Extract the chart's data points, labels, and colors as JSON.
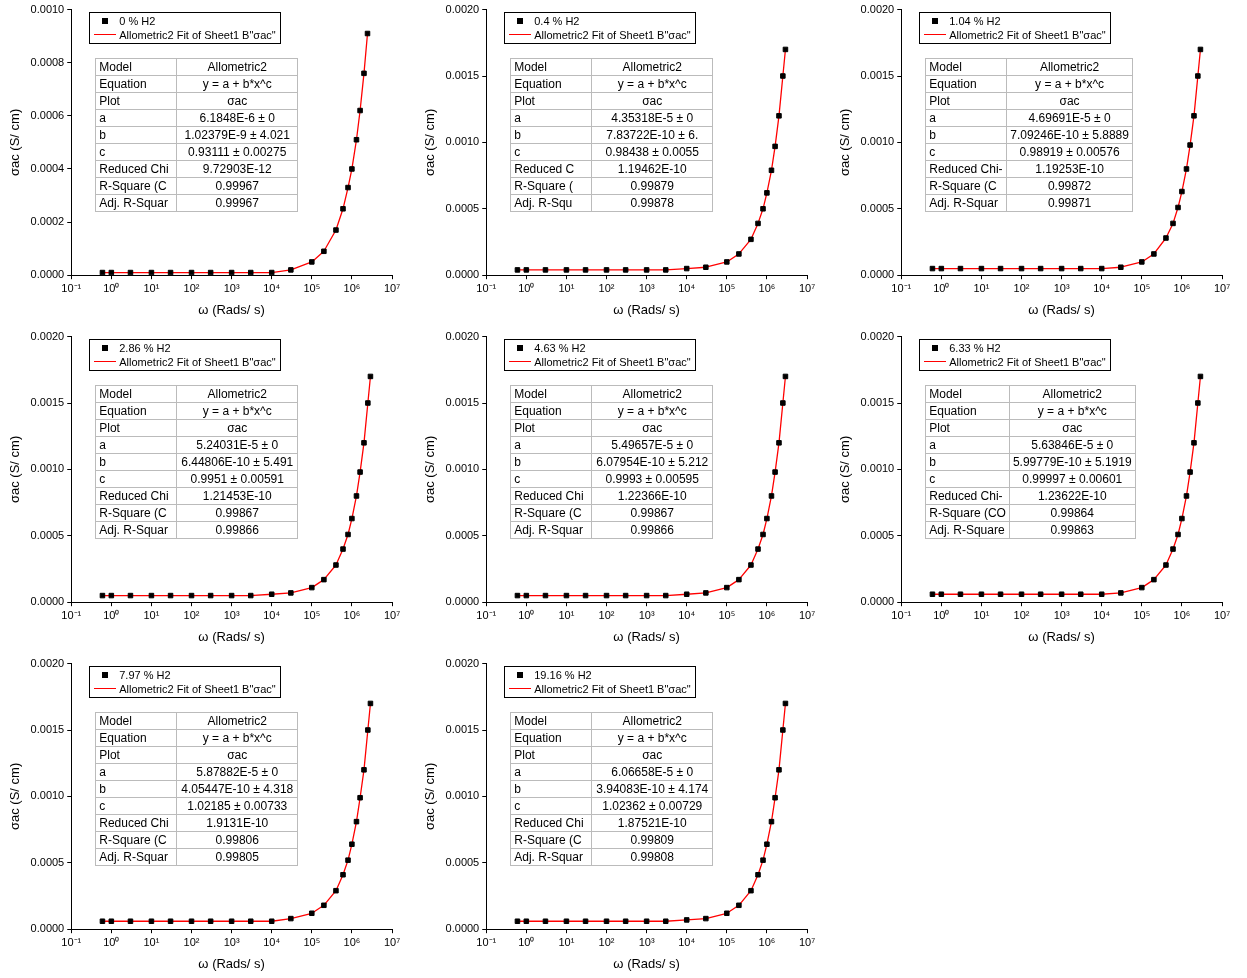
{
  "chart_data": [
    {
      "type": "scatter",
      "xlabel": "ω (Rads/ s)",
      "ylabel": "σac (S/ cm)",
      "log": "x",
      "legend": "top left",
      "xlim": [
        0.1,
        10000000
      ],
      "xticks": [
        {
          "value": 0.1,
          "label": "10⁻¹"
        },
        {
          "value": 1,
          "label": "10⁰"
        },
        {
          "value": 10,
          "label": "10¹"
        },
        {
          "value": 100,
          "label": "10²"
        },
        {
          "value": 1000,
          "label": "10³"
        },
        {
          "value": 10000,
          "label": "10⁴"
        },
        {
          "value": 100000,
          "label": "10⁵"
        },
        {
          "value": 1000000,
          "label": "10⁶"
        },
        {
          "value": 10000000,
          "label": "10⁷"
        }
      ],
      "ylim": [
        0,
        0.001
      ],
      "yticks": [
        {
          "value": 0,
          "label": "0.0000"
        },
        {
          "value": 0.0002,
          "label": "0.0002"
        },
        {
          "value": 0.0004,
          "label": "0.0004"
        },
        {
          "value": 0.0006,
          "label": "0.0006"
        },
        {
          "value": 0.0008,
          "label": "0.0008"
        },
        {
          "value": 0.001,
          "label": "0.0010"
        }
      ],
      "x": [
        0.6,
        1,
        3,
        10,
        30,
        100,
        300,
        1000,
        3000,
        10000,
        30000,
        100000,
        200000,
        400000,
        600000,
        800000,
        1000000,
        1300000,
        1600000,
        2000000,
        2450000
      ],
      "series": [
        {
          "name": "0 % H2",
          "color": "#000000",
          "marker": "square",
          "values": [
            1e-05,
            1e-05,
            1e-05,
            1e-05,
            1e-05,
            1e-05,
            1e-05,
            1e-05,
            1e-05,
            1e-05,
            2e-05,
            5e-05,
            9e-05,
            0.00017,
            0.00025,
            0.00033,
            0.0004,
            0.00051,
            0.00062,
            0.00076,
            0.00091
          ]
        },
        {
          "name": "Allometric2 Fit of Sheet1 B\"σac\"",
          "type": "line",
          "color": "#ff0000",
          "marker": "none",
          "values": [
            1e-05,
            1e-05,
            1e-05,
            1e-05,
            1e-05,
            1e-05,
            1e-05,
            1e-05,
            1e-05,
            1e-05,
            2e-05,
            5e-05,
            9e-05,
            0.00017,
            0.00025,
            0.00033,
            0.0004,
            0.00051,
            0.00062,
            0.00076,
            0.00091
          ]
        }
      ],
      "annotations": [
        "Model",
        "Allometric2",
        "Equation",
        "y = a + b*x^c",
        "Plot",
        "σac",
        "a",
        "6.1848E-6 ± 0",
        "b",
        "1.02379E-9 ± 4.021",
        "c",
        "0.93111 ± 0.00275",
        "Reduced Chi",
        "9.72903E-12",
        "R-Square (C",
        "0.99967",
        "Adj. R-Squar",
        "0.99967"
      ]
    },
    {
      "type": "scatter",
      "xlabel": "ω (Rads/ s)",
      "ylabel": "σac (S/ cm)",
      "log": "x",
      "legend": "top left",
      "xlim": [
        0.1,
        10000000
      ],
      "xticks": [
        {
          "value": 0.1,
          "label": "10⁻¹"
        },
        {
          "value": 1,
          "label": "10⁰"
        },
        {
          "value": 10,
          "label": "10¹"
        },
        {
          "value": 100,
          "label": "10²"
        },
        {
          "value": 1000,
          "label": "10³"
        },
        {
          "value": 10000,
          "label": "10⁴"
        },
        {
          "value": 100000,
          "label": "10⁵"
        },
        {
          "value": 1000000,
          "label": "10⁶"
        },
        {
          "value": 10000000,
          "label": "10⁷"
        }
      ],
      "ylim": [
        0,
        0.002
      ],
      "yticks": [
        {
          "value": 0,
          "label": "0.0000"
        },
        {
          "value": 0.0005,
          "label": "0.0005"
        },
        {
          "value": 0.001,
          "label": "0.0010"
        },
        {
          "value": 0.0015,
          "label": "0.0015"
        },
        {
          "value": 0.002,
          "label": "0.0020"
        }
      ],
      "x": [
        0.6,
        1,
        3,
        10,
        30,
        100,
        300,
        1000,
        3000,
        10000,
        30000,
        100000,
        200000,
        400000,
        600000,
        800000,
        1000000,
        1300000,
        1600000,
        2000000,
        2500000,
        2900000
      ],
      "series": [
        {
          "name": "0.4 % H2",
          "color": "#000000",
          "marker": "square",
          "values": [
            4e-05,
            4e-05,
            4e-05,
            4e-05,
            4e-05,
            4e-05,
            4e-05,
            4e-05,
            4e-05,
            5e-05,
            6e-05,
            0.0001,
            0.00016,
            0.00027,
            0.00039,
            0.0005,
            0.00062,
            0.00079,
            0.00097,
            0.0012,
            0.0015,
            0.0017
          ]
        },
        {
          "name": "Allometric2 Fit of Sheet1 B\"σac\"",
          "type": "line",
          "color": "#ff0000",
          "marker": "none",
          "values": [
            4e-05,
            4e-05,
            4e-05,
            4e-05,
            4e-05,
            4e-05,
            4e-05,
            4e-05,
            4e-05,
            5e-05,
            6e-05,
            0.0001,
            0.00016,
            0.00027,
            0.00039,
            0.0005,
            0.00062,
            0.00079,
            0.00097,
            0.0012,
            0.0015,
            0.0017
          ]
        }
      ],
      "annotations": [
        "Model",
        "Allometric2",
        "Equation",
        "y = a + b*x^c",
        "Plot",
        "σac",
        "a",
        "4.35318E-5 ± 0",
        "b",
        "7.83722E-10 ± 6.",
        "c",
        "0.98438 ± 0.0055",
        "Reduced C",
        "1.19462E-10",
        "R-Square (",
        "0.99879",
        "Adj. R-Squ",
        "0.99878"
      ]
    },
    {
      "type": "scatter",
      "xlabel": "ω (Rads/ s)",
      "ylabel": "σac (S/ cm)",
      "log": "x",
      "legend": "top left",
      "xlim": [
        0.1,
        10000000
      ],
      "xticks": [
        {
          "value": 0.1,
          "label": "10⁻¹"
        },
        {
          "value": 1,
          "label": "10⁰"
        },
        {
          "value": 10,
          "label": "10¹"
        },
        {
          "value": 100,
          "label": "10²"
        },
        {
          "value": 1000,
          "label": "10³"
        },
        {
          "value": 10000,
          "label": "10⁴"
        },
        {
          "value": 100000,
          "label": "10⁵"
        },
        {
          "value": 1000000,
          "label": "10⁶"
        },
        {
          "value": 10000000,
          "label": "10⁷"
        }
      ],
      "ylim": [
        0,
        0.002
      ],
      "yticks": [
        {
          "value": 0,
          "label": "0.0000"
        },
        {
          "value": 0.0005,
          "label": "0.0005"
        },
        {
          "value": 0.001,
          "label": "0.0010"
        },
        {
          "value": 0.0015,
          "label": "0.0015"
        },
        {
          "value": 0.002,
          "label": "0.0020"
        }
      ],
      "x": [
        0.6,
        1,
        3,
        10,
        30,
        100,
        300,
        1000,
        3000,
        10000,
        30000,
        100000,
        200000,
        400000,
        600000,
        800000,
        1000000,
        1300000,
        1600000,
        2000000,
        2500000,
        2900000
      ],
      "series": [
        {
          "name": "1.04 % H2",
          "color": "#000000",
          "marker": "square",
          "values": [
            5e-05,
            5e-05,
            5e-05,
            5e-05,
            5e-05,
            5e-05,
            5e-05,
            5e-05,
            5e-05,
            5e-05,
            6e-05,
            0.0001,
            0.00016,
            0.00028,
            0.00039,
            0.00051,
            0.00063,
            0.0008,
            0.00098,
            0.0012,
            0.0015,
            0.0017
          ]
        },
        {
          "name": "Allometric2 Fit of Sheet1 B\"σac\"",
          "type": "line",
          "color": "#ff0000",
          "marker": "none",
          "values": [
            5e-05,
            5e-05,
            5e-05,
            5e-05,
            5e-05,
            5e-05,
            5e-05,
            5e-05,
            5e-05,
            5e-05,
            6e-05,
            0.0001,
            0.00016,
            0.00028,
            0.00039,
            0.00051,
            0.00063,
            0.0008,
            0.00098,
            0.0012,
            0.0015,
            0.0017
          ]
        }
      ],
      "annotations": [
        "Model",
        "Allometric2",
        "Equation",
        "y = a + b*x^c",
        "Plot",
        "σac",
        "a",
        "4.69691E-5 ± 0",
        "b",
        "7.09246E-10 ± 5.8889",
        "c",
        "0.98919 ± 0.00576",
        "Reduced Chi-",
        "1.19253E-10",
        "R-Square (C",
        "0.99872",
        "Adj. R-Squar",
        "0.99871"
      ]
    },
    {
      "type": "scatter",
      "xlabel": "ω (Rads/ s)",
      "ylabel": "σac (S/ cm)",
      "log": "x",
      "legend": "top left",
      "xlim": [
        0.1,
        10000000
      ],
      "xticks": [
        {
          "value": 0.1,
          "label": "10⁻¹"
        },
        {
          "value": 1,
          "label": "10⁰"
        },
        {
          "value": 10,
          "label": "10¹"
        },
        {
          "value": 100,
          "label": "10²"
        },
        {
          "value": 1000,
          "label": "10³"
        },
        {
          "value": 10000,
          "label": "10⁴"
        },
        {
          "value": 100000,
          "label": "10⁵"
        },
        {
          "value": 1000000,
          "label": "10⁶"
        },
        {
          "value": 10000000,
          "label": "10⁷"
        }
      ],
      "ylim": [
        0,
        0.002
      ],
      "yticks": [
        {
          "value": 0,
          "label": "0.0000"
        },
        {
          "value": 0.0005,
          "label": "0.0005"
        },
        {
          "value": 0.001,
          "label": "0.0010"
        },
        {
          "value": 0.0015,
          "label": "0.0015"
        },
        {
          "value": 0.002,
          "label": "0.0020"
        }
      ],
      "x": [
        0.6,
        1,
        3,
        10,
        30,
        100,
        300,
        1000,
        3000,
        10000,
        30000,
        100000,
        200000,
        400000,
        600000,
        800000,
        1000000,
        1300000,
        1600000,
        2000000,
        2500000,
        2900000
      ],
      "series": [
        {
          "name": "2.86 % H2",
          "color": "#000000",
          "marker": "square",
          "values": [
            5e-05,
            5e-05,
            5e-05,
            5e-05,
            5e-05,
            5e-05,
            5e-05,
            5e-05,
            5e-05,
            6e-05,
            7e-05,
            0.00011,
            0.00017,
            0.00028,
            0.0004,
            0.00051,
            0.00063,
            0.0008,
            0.00098,
            0.0012,
            0.0015,
            0.0017
          ]
        },
        {
          "name": "Allometric2 Fit of Sheet1 B\"σac\"",
          "type": "line",
          "color": "#ff0000",
          "marker": "none",
          "values": [
            5e-05,
            5e-05,
            5e-05,
            5e-05,
            5e-05,
            5e-05,
            5e-05,
            5e-05,
            5e-05,
            6e-05,
            7e-05,
            0.00011,
            0.00017,
            0.00028,
            0.0004,
            0.00051,
            0.00063,
            0.0008,
            0.00098,
            0.0012,
            0.0015,
            0.0017
          ]
        }
      ],
      "annotations": [
        "Model",
        "Allometric2",
        "Equation",
        "y = a + b*x^c",
        "Plot",
        "σac",
        "a",
        "5.24031E-5 ± 0",
        "b",
        "6.44806E-10 ± 5.491",
        "c",
        "0.9951 ± 0.00591",
        "Reduced Chi",
        "1.21453E-10",
        "R-Square (C",
        "0.99867",
        "Adj. R-Squar",
        "0.99866"
      ]
    },
    {
      "type": "scatter",
      "xlabel": "ω (Rads/ s)",
      "ylabel": "σac (S/ cm)",
      "log": "x",
      "legend": "top left",
      "xlim": [
        0.1,
        10000000
      ],
      "xticks": [
        {
          "value": 0.1,
          "label": "10⁻¹"
        },
        {
          "value": 1,
          "label": "10⁰"
        },
        {
          "value": 10,
          "label": "10¹"
        },
        {
          "value": 100,
          "label": "10²"
        },
        {
          "value": 1000,
          "label": "10³"
        },
        {
          "value": 10000,
          "label": "10⁴"
        },
        {
          "value": 100000,
          "label": "10⁵"
        },
        {
          "value": 1000000,
          "label": "10⁶"
        },
        {
          "value": 10000000,
          "label": "10⁷"
        }
      ],
      "ylim": [
        0,
        0.002
      ],
      "yticks": [
        {
          "value": 0,
          "label": "0.0000"
        },
        {
          "value": 0.0005,
          "label": "0.0005"
        },
        {
          "value": 0.001,
          "label": "0.0010"
        },
        {
          "value": 0.0015,
          "label": "0.0015"
        },
        {
          "value": 0.002,
          "label": "0.0020"
        }
      ],
      "x": [
        0.6,
        1,
        3,
        10,
        30,
        100,
        300,
        1000,
        3000,
        10000,
        30000,
        100000,
        200000,
        400000,
        600000,
        800000,
        1000000,
        1300000,
        1600000,
        2000000,
        2500000,
        2900000
      ],
      "series": [
        {
          "name": "4.63 % H2",
          "color": "#000000",
          "marker": "square",
          "values": [
            5e-05,
            5e-05,
            5e-05,
            5e-05,
            5e-05,
            5e-05,
            5e-05,
            5e-05,
            5e-05,
            6e-05,
            7e-05,
            0.00011,
            0.00017,
            0.00028,
            0.0004,
            0.00051,
            0.00063,
            0.0008,
            0.00098,
            0.0012,
            0.0015,
            0.0017
          ]
        },
        {
          "name": "Allometric2 Fit of Sheet1 B\"σac\"",
          "type": "line",
          "color": "#ff0000",
          "marker": "none",
          "values": [
            5e-05,
            5e-05,
            5e-05,
            5e-05,
            5e-05,
            5e-05,
            5e-05,
            5e-05,
            5e-05,
            6e-05,
            7e-05,
            0.00011,
            0.00017,
            0.00028,
            0.0004,
            0.00051,
            0.00063,
            0.0008,
            0.00098,
            0.0012,
            0.0015,
            0.0017
          ]
        }
      ],
      "annotations": [
        "Model",
        "Allometric2",
        "Equation",
        "y = a + b*x^c",
        "Plot",
        "σac",
        "a",
        "5.49657E-5 ± 0",
        "b",
        "6.07954E-10 ± 5.212",
        "c",
        "0.9993 ± 0.00595",
        "Reduced Chi",
        "1.22366E-10",
        "R-Square (C",
        "0.99867",
        "Adj. R-Squar",
        "0.99866"
      ]
    },
    {
      "type": "scatter",
      "xlabel": "ω (Rads/ s)",
      "ylabel": "σac (S/ cm)",
      "log": "x",
      "legend": "top left",
      "xlim": [
        0.1,
        10000000
      ],
      "xticks": [
        {
          "value": 0.1,
          "label": "10⁻¹"
        },
        {
          "value": 1,
          "label": "10⁰"
        },
        {
          "value": 10,
          "label": "10¹"
        },
        {
          "value": 100,
          "label": "10²"
        },
        {
          "value": 1000,
          "label": "10³"
        },
        {
          "value": 10000,
          "label": "10⁴"
        },
        {
          "value": 100000,
          "label": "10⁵"
        },
        {
          "value": 1000000,
          "label": "10⁶"
        },
        {
          "value": 10000000,
          "label": "10⁷"
        }
      ],
      "ylim": [
        0,
        0.002
      ],
      "yticks": [
        {
          "value": 0,
          "label": "0.0000"
        },
        {
          "value": 0.0005,
          "label": "0.0005"
        },
        {
          "value": 0.001,
          "label": "0.0010"
        },
        {
          "value": 0.0015,
          "label": "0.0015"
        },
        {
          "value": 0.002,
          "label": "0.0020"
        }
      ],
      "x": [
        0.6,
        1,
        3,
        10,
        30,
        100,
        300,
        1000,
        3000,
        10000,
        30000,
        100000,
        200000,
        400000,
        600000,
        800000,
        1000000,
        1300000,
        1600000,
        2000000,
        2500000,
        2900000
      ],
      "series": [
        {
          "name": "6.33 % H2",
          "color": "#000000",
          "marker": "square",
          "values": [
            6e-05,
            6e-05,
            6e-05,
            6e-05,
            6e-05,
            6e-05,
            6e-05,
            6e-05,
            6e-05,
            6e-05,
            7e-05,
            0.00011,
            0.00017,
            0.00028,
            0.0004,
            0.00051,
            0.00063,
            0.0008,
            0.00098,
            0.0012,
            0.0015,
            0.0017
          ]
        },
        {
          "name": "Allometric2 Fit of Sheet1 B\"σac\"",
          "type": "line",
          "color": "#ff0000",
          "marker": "none",
          "values": [
            6e-05,
            6e-05,
            6e-05,
            6e-05,
            6e-05,
            6e-05,
            6e-05,
            6e-05,
            6e-05,
            6e-05,
            7e-05,
            0.00011,
            0.00017,
            0.00028,
            0.0004,
            0.00051,
            0.00063,
            0.0008,
            0.00098,
            0.0012,
            0.0015,
            0.0017
          ]
        }
      ],
      "annotations": [
        "Model",
        "Allometric2",
        "Equation",
        "y = a + b*x^c",
        "Plot",
        "σac",
        "a",
        "5.63846E-5 ± 0",
        "b",
        "5.99779E-10 ± 5.1919",
        "c",
        "0.99997 ± 0.00601",
        "Reduced Chi-",
        "1.23622E-10",
        "R-Square (CO",
        "0.99864",
        "Adj. R-Square",
        "0.99863"
      ]
    },
    {
      "type": "scatter",
      "xlabel": "ω (Rads/ s)",
      "ylabel": "σac (S/ cm)",
      "log": "x",
      "legend": "top left",
      "xlim": [
        0.1,
        10000000
      ],
      "xticks": [
        {
          "value": 0.1,
          "label": "10⁻¹"
        },
        {
          "value": 1,
          "label": "10⁰"
        },
        {
          "value": 10,
          "label": "10¹"
        },
        {
          "value": 100,
          "label": "10²"
        },
        {
          "value": 1000,
          "label": "10³"
        },
        {
          "value": 10000,
          "label": "10⁴"
        },
        {
          "value": 100000,
          "label": "10⁵"
        },
        {
          "value": 1000000,
          "label": "10⁶"
        },
        {
          "value": 10000000,
          "label": "10⁷"
        }
      ],
      "ylim": [
        0,
        0.002
      ],
      "yticks": [
        {
          "value": 0,
          "label": "0.0000"
        },
        {
          "value": 0.0005,
          "label": "0.0005"
        },
        {
          "value": 0.001,
          "label": "0.0010"
        },
        {
          "value": 0.0015,
          "label": "0.0015"
        },
        {
          "value": 0.002,
          "label": "0.0020"
        }
      ],
      "x": [
        0.6,
        1,
        3,
        10,
        30,
        100,
        300,
        1000,
        3000,
        10000,
        30000,
        100000,
        200000,
        400000,
        600000,
        800000,
        1000000,
        1300000,
        1600000,
        2000000,
        2500000,
        2900000
      ],
      "series": [
        {
          "name": "7.97 % H2",
          "color": "#000000",
          "marker": "square",
          "values": [
            6e-05,
            6e-05,
            6e-05,
            6e-05,
            6e-05,
            6e-05,
            6e-05,
            6e-05,
            6e-05,
            6e-05,
            8e-05,
            0.00012,
            0.00018,
            0.00029,
            0.00041,
            0.00052,
            0.00064,
            0.00081,
            0.00099,
            0.0012,
            0.0015,
            0.0017
          ]
        },
        {
          "name": "Allometric2 Fit of Sheet1 B\"σac\"",
          "type": "line",
          "color": "#ff0000",
          "marker": "none",
          "values": [
            6e-05,
            6e-05,
            6e-05,
            6e-05,
            6e-05,
            6e-05,
            6e-05,
            6e-05,
            6e-05,
            6e-05,
            8e-05,
            0.00012,
            0.00018,
            0.00029,
            0.00041,
            0.00052,
            0.00064,
            0.00081,
            0.00099,
            0.0012,
            0.0015,
            0.0017
          ]
        }
      ],
      "annotations": [
        "Model",
        "Allometric2",
        "Equation",
        "y = a + b*x^c",
        "Plot",
        "σac",
        "a",
        "5.87882E-5 ± 0",
        "b",
        "4.05447E-10 ± 4.318",
        "c",
        "1.02185 ± 0.00733",
        "Reduced Chi",
        "1.9131E-10",
        "R-Square (C",
        "0.99806",
        "Adj. R-Squar",
        "0.99805"
      ]
    },
    {
      "type": "scatter",
      "xlabel": "ω (Rads/ s)",
      "ylabel": "σac (S/ cm)",
      "log": "x",
      "legend": "top left",
      "xlim": [
        0.1,
        10000000
      ],
      "xticks": [
        {
          "value": 0.1,
          "label": "10⁻¹"
        },
        {
          "value": 1,
          "label": "10⁰"
        },
        {
          "value": 10,
          "label": "10¹"
        },
        {
          "value": 100,
          "label": "10²"
        },
        {
          "value": 1000,
          "label": "10³"
        },
        {
          "value": 10000,
          "label": "10⁴"
        },
        {
          "value": 100000,
          "label": "10⁵"
        },
        {
          "value": 1000000,
          "label": "10⁶"
        },
        {
          "value": 10000000,
          "label": "10⁷"
        }
      ],
      "ylim": [
        0,
        0.002
      ],
      "yticks": [
        {
          "value": 0,
          "label": "0.0000"
        },
        {
          "value": 0.0005,
          "label": "0.0005"
        },
        {
          "value": 0.001,
          "label": "0.0010"
        },
        {
          "value": 0.0015,
          "label": "0.0015"
        },
        {
          "value": 0.002,
          "label": "0.0020"
        }
      ],
      "x": [
        0.6,
        1,
        3,
        10,
        30,
        100,
        300,
        1000,
        3000,
        10000,
        30000,
        100000,
        200000,
        400000,
        600000,
        800000,
        1000000,
        1300000,
        1600000,
        2000000,
        2500000,
        2900000
      ],
      "series": [
        {
          "name": "19.16 % H2",
          "color": "#000000",
          "marker": "square",
          "values": [
            6e-05,
            6e-05,
            6e-05,
            6e-05,
            6e-05,
            6e-05,
            6e-05,
            6e-05,
            6e-05,
            7e-05,
            8e-05,
            0.00012,
            0.00018,
            0.00029,
            0.00041,
            0.00052,
            0.00064,
            0.00081,
            0.00099,
            0.0012,
            0.0015,
            0.0017
          ]
        },
        {
          "name": "Allometric2 Fit of Sheet1 B\"σac\"",
          "type": "line",
          "color": "#ff0000",
          "marker": "none",
          "values": [
            6e-05,
            6e-05,
            6e-05,
            6e-05,
            6e-05,
            6e-05,
            6e-05,
            6e-05,
            6e-05,
            7e-05,
            8e-05,
            0.00012,
            0.00018,
            0.00029,
            0.00041,
            0.00052,
            0.00064,
            0.00081,
            0.00099,
            0.0012,
            0.0015,
            0.0017
          ]
        }
      ],
      "annotations": [
        "Model",
        "Allometric2",
        "Equation",
        "y = a + b*x^c",
        "Plot",
        "σac",
        "a",
        "6.06658E-5 ± 0",
        "b",
        "3.94083E-10 ± 4.174",
        "c",
        "1.02362 ± 0.00729",
        "Reduced Chi",
        "1.87521E-10",
        "R-Square (C",
        "0.99809",
        "Adj. R-Squar",
        "0.99808"
      ]
    }
  ]
}
